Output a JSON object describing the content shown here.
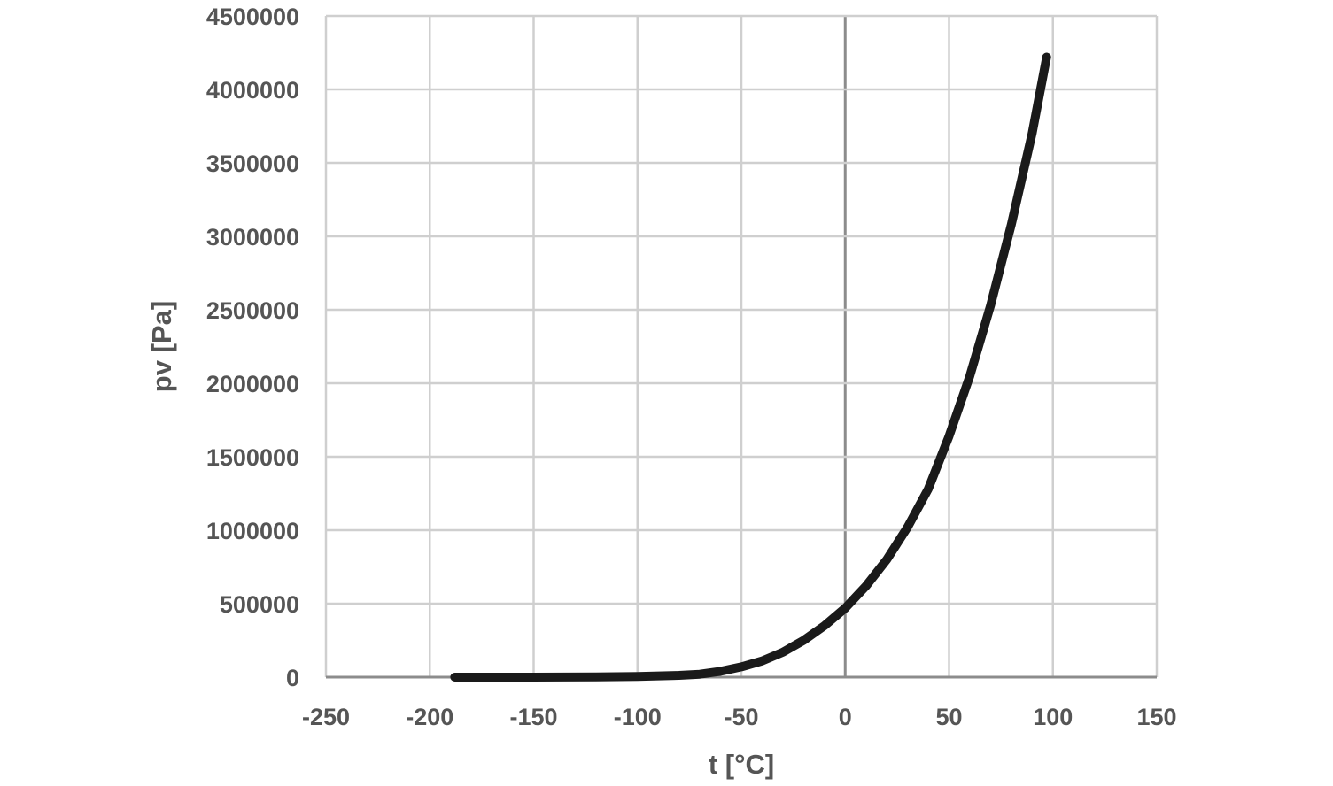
{
  "chart_data": {
    "type": "line",
    "title": "",
    "xlabel": "t [°C]",
    "ylabel": "pv [Pa]",
    "xlim": [
      -250,
      150
    ],
    "ylim": [
      0,
      4500000
    ],
    "x_ticks": [
      "-250",
      "-200",
      "-150",
      "-100",
      "-50",
      "0",
      "50",
      "100",
      "150"
    ],
    "y_ticks": [
      "0",
      "500000",
      "1000000",
      "1500000",
      "2000000",
      "2500000",
      "3000000",
      "3500000",
      "4000000",
      "4500000"
    ],
    "grid": true,
    "legend": "none",
    "series": [
      {
        "color": "#1a1a1a",
        "x": [
          -188,
          -150,
          -120,
          -100,
          -80,
          -70,
          -60,
          -50,
          -40,
          -30,
          -20,
          -10,
          0,
          10,
          20,
          30,
          40,
          50,
          60,
          70,
          80,
          90,
          97
        ],
        "y": [
          0,
          200,
          1500,
          4000,
          12000,
          20000,
          40000,
          70000,
          110000,
          170000,
          250000,
          350000,
          470000,
          620000,
          800000,
          1020000,
          1280000,
          1640000,
          2050000,
          2530000,
          3080000,
          3700000,
          4220000
        ]
      }
    ]
  }
}
